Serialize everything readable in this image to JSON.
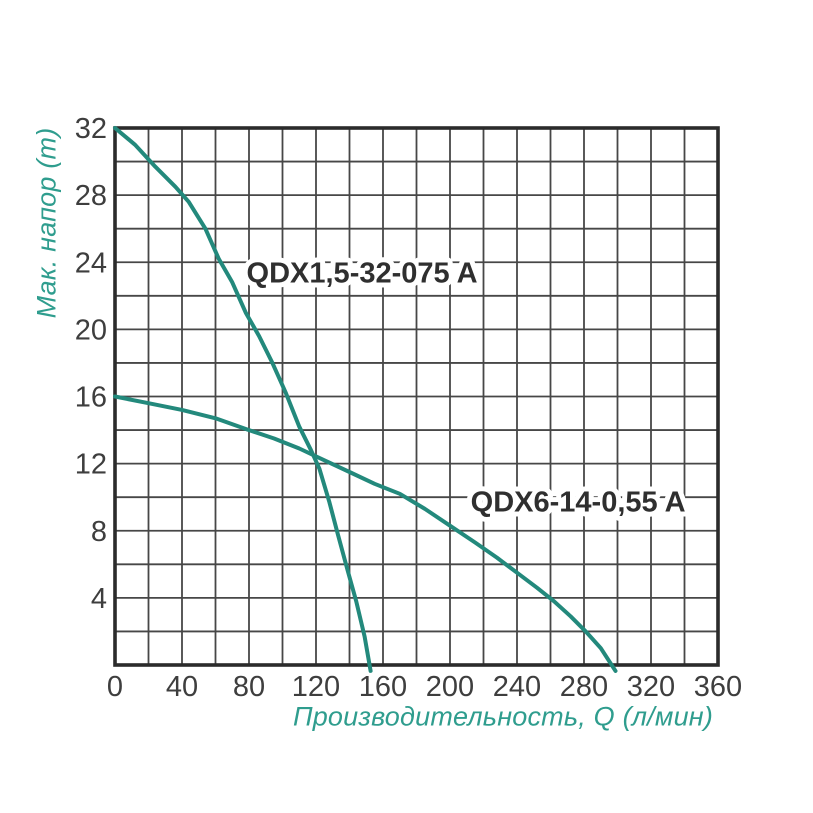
{
  "figure": {
    "colors": {
      "curve": "#23897c",
      "axis_title_text": "#2f9d8e",
      "tick_text": "#3e3e3e",
      "grid_line": "#474747",
      "frame": "#2b2b2b",
      "curve_label_text": "#2f2f2f",
      "curve_label_halo": "#ffffff",
      "background": "#ffffff"
    }
  },
  "chart_data": {
    "type": "line",
    "title": "",
    "xlabel": "Производительность, Q (л/мин)",
    "ylabel": "Мак. напор (m)",
    "xlim": [
      0,
      360
    ],
    "ylim": [
      0,
      32
    ],
    "x_ticks": [
      0,
      40,
      80,
      120,
      160,
      200,
      240,
      280,
      320,
      360
    ],
    "y_ticks": [
      4,
      8,
      12,
      16,
      20,
      24,
      28,
      32
    ],
    "grid": "on",
    "grid_step_x": 20,
    "grid_step_y": 2,
    "legend": "inline-curve-labels",
    "series": [
      {
        "name": "QDX1,5-32-075 A",
        "label_anchor": {
          "x": 147.5,
          "y": 23.4
        },
        "points": [
          [
            0,
            32
          ],
          [
            12,
            31
          ],
          [
            24,
            29.7
          ],
          [
            36,
            28.5
          ],
          [
            44,
            27.6
          ],
          [
            54,
            26
          ],
          [
            62,
            24.2
          ],
          [
            70,
            22.8
          ],
          [
            78,
            21
          ],
          [
            86,
            19.6
          ],
          [
            94,
            18
          ],
          [
            102,
            16.2
          ],
          [
            110,
            14.2
          ],
          [
            117,
            12.8
          ],
          [
            122,
            11.7
          ],
          [
            128,
            9.7
          ],
          [
            133,
            7.8
          ],
          [
            139,
            5.6
          ],
          [
            144,
            3.8
          ],
          [
            149,
            1.7
          ],
          [
            152.6,
            -0.35
          ]
        ]
      },
      {
        "name": "QDX6-14-0,55 A",
        "label_anchor": {
          "x": 276.5,
          "y": 9.75
        },
        "points": [
          [
            0,
            16
          ],
          [
            20,
            15.6
          ],
          [
            40,
            15.2
          ],
          [
            60,
            14.7
          ],
          [
            80,
            14
          ],
          [
            95,
            13.5
          ],
          [
            110,
            12.9
          ],
          [
            125,
            12.2
          ],
          [
            140,
            11.5
          ],
          [
            155,
            10.8
          ],
          [
            170,
            10.2
          ],
          [
            185,
            9.3
          ],
          [
            200,
            8.3
          ],
          [
            215,
            7.3
          ],
          [
            228,
            6.4
          ],
          [
            240,
            5.5
          ],
          [
            252,
            4.6
          ],
          [
            262,
            3.8
          ],
          [
            272,
            2.9
          ],
          [
            281,
            2
          ],
          [
            290,
            1
          ],
          [
            298.8,
            -0.35
          ]
        ]
      }
    ]
  }
}
